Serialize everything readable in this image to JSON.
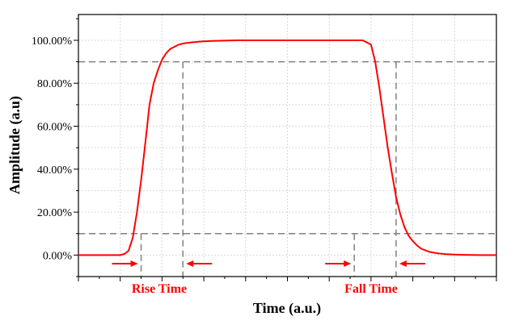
{
  "chart_data": {
    "type": "line",
    "xlabel": "Time (a.u.)",
    "ylabel": "Amplitude (a.u)",
    "yticks": [
      "0.00%",
      "20.00%",
      "40.00%",
      "60.00%",
      "80.00%",
      "100.00%"
    ],
    "ylim": [
      -10,
      112
    ],
    "xlim": [
      0,
      100
    ],
    "grid": true,
    "x_tick_labels": "none",
    "series": [
      {
        "color": "#ff0000",
        "x": [
          0,
          10,
          11,
          12,
          13,
          14,
          15,
          16,
          17,
          18,
          19,
          20,
          21,
          22,
          23,
          24,
          25,
          26,
          27,
          28,
          29,
          30,
          32,
          34,
          36,
          38,
          40,
          44,
          48,
          52,
          56,
          60,
          64,
          68,
          70,
          71,
          72,
          73,
          74,
          75,
          76,
          77,
          78,
          79,
          80,
          81,
          82,
          83,
          84,
          86,
          88,
          90,
          93,
          96,
          100
        ],
        "y": [
          0,
          0,
          0.5,
          2,
          8,
          20,
          35,
          52,
          70,
          80,
          86,
          91,
          94,
          96,
          97,
          98,
          98.5,
          98.8,
          99,
          99.2,
          99.4,
          99.5,
          99.7,
          99.8,
          99.9,
          100,
          100,
          100,
          100,
          100,
          100,
          100,
          100,
          100,
          98,
          90,
          78,
          64,
          50,
          38,
          27,
          19,
          13,
          9,
          6.5,
          4.5,
          3,
          2.2,
          1.5,
          0.8,
          0.4,
          0.2,
          0.1,
          0,
          0
        ]
      }
    ],
    "reference_lines": {
      "horizontal": [
        10,
        90
      ],
      "vertical": [
        15,
        25,
        66,
        76
      ]
    },
    "color": "#ff0000",
    "annotations": {
      "rise_label": "Rise Time",
      "fall_label": "Fall Time",
      "label_color": "#ff0000"
    }
  }
}
